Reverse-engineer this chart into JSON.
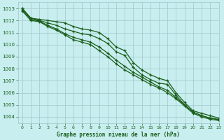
{
  "title": "Graphe pression niveau de la mer (hPa)",
  "background_color": "#c8eef0",
  "plot_bg_color": "#c8eef0",
  "grid_color": "#a0c8c8",
  "line_color": "#1a5e1a",
  "xlim": [
    -0.5,
    23
  ],
  "ylim": [
    1003.5,
    1013.5
  ],
  "yticks": [
    1004,
    1005,
    1006,
    1007,
    1008,
    1009,
    1010,
    1011,
    1012,
    1013
  ],
  "xticks": [
    0,
    1,
    2,
    3,
    4,
    5,
    6,
    7,
    8,
    9,
    10,
    11,
    12,
    13,
    14,
    15,
    16,
    17,
    18,
    19,
    20,
    21,
    22,
    23
  ],
  "series": [
    [
      1013.0,
      1012.2,
      1012.0,
      1011.8,
      1011.6,
      1011.3,
      1011.1,
      1010.9,
      1010.8,
      1010.5,
      1010.1,
      1009.4,
      1009.1,
      1008.1,
      1007.5,
      1007.1,
      1006.8,
      1006.7,
      1005.8,
      1005.0,
      1004.4,
      1004.1,
      1003.9,
      1003.8
    ],
    [
      1012.8,
      1012.0,
      1011.9,
      1011.5,
      1011.2,
      1010.8,
      1010.4,
      1010.2,
      1010.0,
      1009.5,
      1009.0,
      1008.4,
      1007.9,
      1007.5,
      1007.1,
      1006.7,
      1006.4,
      1006.0,
      1005.5,
      1004.9,
      1004.3,
      1004.0,
      1003.8,
      1003.7
    ],
    [
      1012.9,
      1012.1,
      1011.95,
      1011.6,
      1011.3,
      1010.9,
      1010.6,
      1010.4,
      1010.2,
      1009.8,
      1009.3,
      1008.7,
      1008.2,
      1007.7,
      1007.3,
      1006.9,
      1006.5,
      1006.2,
      1005.6,
      1005.0,
      1004.4,
      1004.1,
      1003.9,
      1003.75
    ],
    [
      1013.0,
      1012.2,
      1012.1,
      1012.0,
      1011.9,
      1011.8,
      1011.5,
      1011.3,
      1011.2,
      1011.0,
      1010.5,
      1009.8,
      1009.5,
      1008.5,
      1007.9,
      1007.5,
      1007.2,
      1007.0,
      1006.0,
      1005.2,
      1004.5,
      1004.3,
      1004.1,
      1003.9
    ]
  ]
}
